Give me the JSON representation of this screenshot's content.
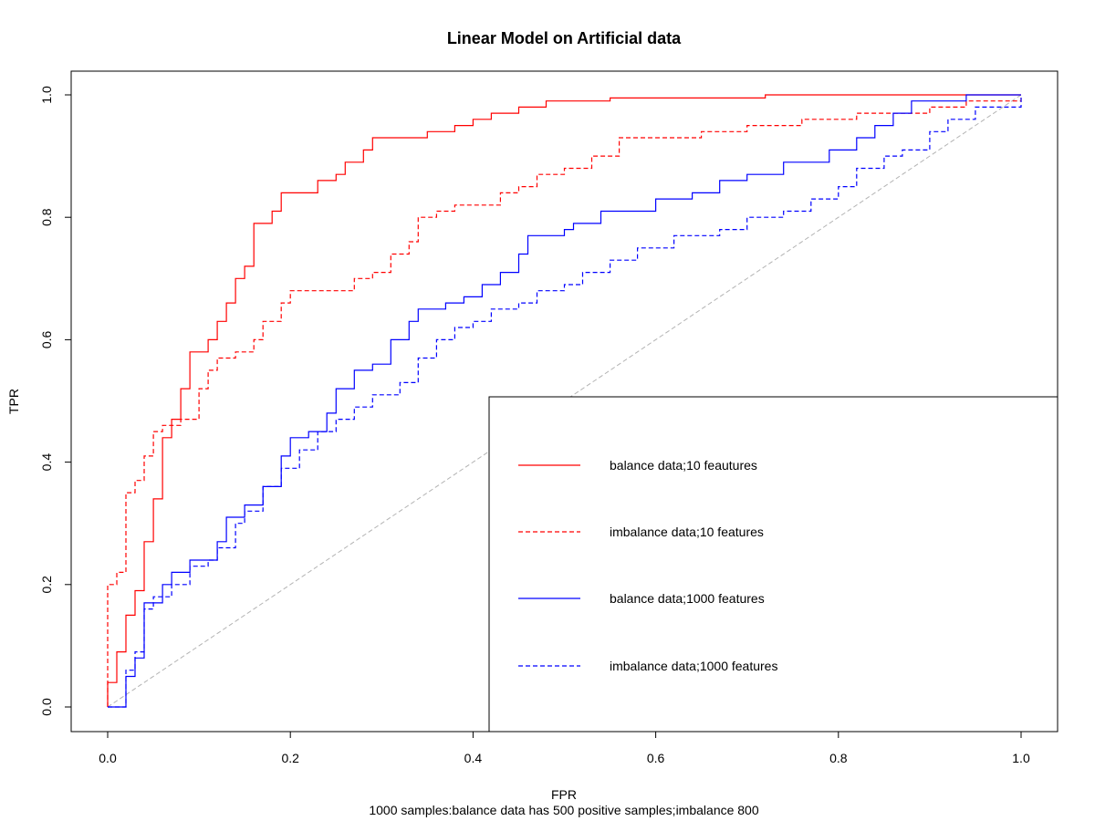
{
  "chart_data": {
    "type": "line",
    "title": "Linear Model on Artificial data",
    "xlabel": "FPR",
    "ylabel": "TPR",
    "subtitle": "1000 samples:balance data has 500 positive samples;imbalance 800",
    "xlim": [
      0,
      1
    ],
    "ylim": [
      0,
      1
    ],
    "x_ticks": [
      "0.0",
      "0.2",
      "0.4",
      "0.6",
      "0.8",
      "1.0"
    ],
    "y_ticks": [
      "0.0",
      "0.2",
      "0.4",
      "0.6",
      "0.8",
      "1.0"
    ],
    "grid": false,
    "legend_position": "bottom-right",
    "reference_line": {
      "from": [
        0,
        0
      ],
      "to": [
        1,
        1
      ],
      "color": "#b3b3b3",
      "style": "dashed"
    },
    "series": [
      {
        "name": "balance data;10 feautures",
        "color": "#ff0000",
        "style": "solid",
        "points": [
          [
            0,
            0
          ],
          [
            0,
            0.04
          ],
          [
            0.01,
            0.07
          ],
          [
            0.01,
            0.09
          ],
          [
            0.02,
            0.12
          ],
          [
            0.02,
            0.15
          ],
          [
            0.03,
            0.17
          ],
          [
            0.03,
            0.19
          ],
          [
            0.04,
            0.23
          ],
          [
            0.04,
            0.27
          ],
          [
            0.05,
            0.31
          ],
          [
            0.05,
            0.34
          ],
          [
            0.06,
            0.4
          ],
          [
            0.06,
            0.44
          ],
          [
            0.07,
            0.46
          ],
          [
            0.07,
            0.47
          ],
          [
            0.08,
            0.52
          ],
          [
            0.09,
            0.55
          ],
          [
            0.09,
            0.58
          ],
          [
            0.11,
            0.6
          ],
          [
            0.12,
            0.63
          ],
          [
            0.13,
            0.66
          ],
          [
            0.14,
            0.7
          ],
          [
            0.15,
            0.72
          ],
          [
            0.16,
            0.79
          ],
          [
            0.18,
            0.81
          ],
          [
            0.19,
            0.84
          ],
          [
            0.22,
            0.84
          ],
          [
            0.23,
            0.86
          ],
          [
            0.25,
            0.87
          ],
          [
            0.26,
            0.89
          ],
          [
            0.28,
            0.91
          ],
          [
            0.29,
            0.93
          ],
          [
            0.34,
            0.93
          ],
          [
            0.35,
            0.94
          ],
          [
            0.38,
            0.95
          ],
          [
            0.4,
            0.96
          ],
          [
            0.42,
            0.97
          ],
          [
            0.45,
            0.98
          ],
          [
            0.48,
            0.99
          ],
          [
            0.55,
            0.995
          ],
          [
            0.72,
            1.0
          ],
          [
            0.82,
            1.0
          ],
          [
            1,
            1
          ]
        ]
      },
      {
        "name": "imbalance data;10 features",
        "color": "#ff0000",
        "style": "dashed",
        "points": [
          [
            0,
            0
          ],
          [
            0,
            0.2
          ],
          [
            0.01,
            0.22
          ],
          [
            0.02,
            0.35
          ],
          [
            0.03,
            0.37
          ],
          [
            0.04,
            0.41
          ],
          [
            0.05,
            0.45
          ],
          [
            0.06,
            0.46
          ],
          [
            0.08,
            0.47
          ],
          [
            0.09,
            0.47
          ],
          [
            0.1,
            0.52
          ],
          [
            0.11,
            0.55
          ],
          [
            0.12,
            0.57
          ],
          [
            0.14,
            0.58
          ],
          [
            0.16,
            0.6
          ],
          [
            0.17,
            0.63
          ],
          [
            0.19,
            0.66
          ],
          [
            0.2,
            0.68
          ],
          [
            0.25,
            0.68
          ],
          [
            0.27,
            0.7
          ],
          [
            0.29,
            0.71
          ],
          [
            0.31,
            0.74
          ],
          [
            0.33,
            0.76
          ],
          [
            0.34,
            0.8
          ],
          [
            0.36,
            0.81
          ],
          [
            0.38,
            0.82
          ],
          [
            0.42,
            0.82
          ],
          [
            0.43,
            0.84
          ],
          [
            0.45,
            0.85
          ],
          [
            0.47,
            0.87
          ],
          [
            0.5,
            0.88
          ],
          [
            0.53,
            0.9
          ],
          [
            0.56,
            0.93
          ],
          [
            0.62,
            0.93
          ],
          [
            0.65,
            0.94
          ],
          [
            0.7,
            0.95
          ],
          [
            0.76,
            0.96
          ],
          [
            0.82,
            0.97
          ],
          [
            0.9,
            0.98
          ],
          [
            0.94,
            0.99
          ],
          [
            1,
            1
          ]
        ]
      },
      {
        "name": "balance data;1000 features",
        "color": "#0000ff",
        "style": "solid",
        "points": [
          [
            0,
            0
          ],
          [
            0.02,
            0.05
          ],
          [
            0.03,
            0.08
          ],
          [
            0.04,
            0.12
          ],
          [
            0.04,
            0.17
          ],
          [
            0.06,
            0.2
          ],
          [
            0.07,
            0.22
          ],
          [
            0.09,
            0.24
          ],
          [
            0.12,
            0.27
          ],
          [
            0.13,
            0.31
          ],
          [
            0.15,
            0.33
          ],
          [
            0.17,
            0.36
          ],
          [
            0.19,
            0.41
          ],
          [
            0.2,
            0.44
          ],
          [
            0.22,
            0.45
          ],
          [
            0.24,
            0.48
          ],
          [
            0.25,
            0.52
          ],
          [
            0.27,
            0.55
          ],
          [
            0.29,
            0.56
          ],
          [
            0.31,
            0.6
          ],
          [
            0.33,
            0.63
          ],
          [
            0.34,
            0.65
          ],
          [
            0.37,
            0.66
          ],
          [
            0.39,
            0.67
          ],
          [
            0.41,
            0.69
          ],
          [
            0.43,
            0.71
          ],
          [
            0.45,
            0.74
          ],
          [
            0.46,
            0.77
          ],
          [
            0.5,
            0.78
          ],
          [
            0.51,
            0.79
          ],
          [
            0.54,
            0.81
          ],
          [
            0.57,
            0.81
          ],
          [
            0.6,
            0.83
          ],
          [
            0.64,
            0.84
          ],
          [
            0.67,
            0.86
          ],
          [
            0.7,
            0.87
          ],
          [
            0.74,
            0.89
          ],
          [
            0.79,
            0.91
          ],
          [
            0.82,
            0.93
          ],
          [
            0.84,
            0.95
          ],
          [
            0.86,
            0.97
          ],
          [
            0.88,
            0.99
          ],
          [
            0.94,
            1.0
          ],
          [
            1,
            1
          ]
        ]
      },
      {
        "name": "imbalance data;1000 features",
        "color": "#0000ff",
        "style": "dashed",
        "points": [
          [
            0,
            0
          ],
          [
            0.02,
            0.06
          ],
          [
            0.03,
            0.09
          ],
          [
            0.04,
            0.16
          ],
          [
            0.05,
            0.18
          ],
          [
            0.07,
            0.2
          ],
          [
            0.09,
            0.23
          ],
          [
            0.11,
            0.24
          ],
          [
            0.12,
            0.26
          ],
          [
            0.14,
            0.3
          ],
          [
            0.15,
            0.32
          ],
          [
            0.17,
            0.36
          ],
          [
            0.19,
            0.39
          ],
          [
            0.21,
            0.42
          ],
          [
            0.23,
            0.45
          ],
          [
            0.25,
            0.47
          ],
          [
            0.27,
            0.49
          ],
          [
            0.29,
            0.51
          ],
          [
            0.32,
            0.53
          ],
          [
            0.34,
            0.57
          ],
          [
            0.36,
            0.6
          ],
          [
            0.38,
            0.62
          ],
          [
            0.4,
            0.63
          ],
          [
            0.42,
            0.65
          ],
          [
            0.45,
            0.66
          ],
          [
            0.47,
            0.68
          ],
          [
            0.5,
            0.69
          ],
          [
            0.52,
            0.71
          ],
          [
            0.55,
            0.73
          ],
          [
            0.58,
            0.75
          ],
          [
            0.62,
            0.77
          ],
          [
            0.67,
            0.78
          ],
          [
            0.7,
            0.8
          ],
          [
            0.74,
            0.81
          ],
          [
            0.77,
            0.83
          ],
          [
            0.8,
            0.85
          ],
          [
            0.82,
            0.88
          ],
          [
            0.85,
            0.9
          ],
          [
            0.87,
            0.91
          ],
          [
            0.9,
            0.94
          ],
          [
            0.92,
            0.96
          ],
          [
            0.95,
            0.98
          ],
          [
            1,
            1
          ]
        ]
      }
    ]
  }
}
